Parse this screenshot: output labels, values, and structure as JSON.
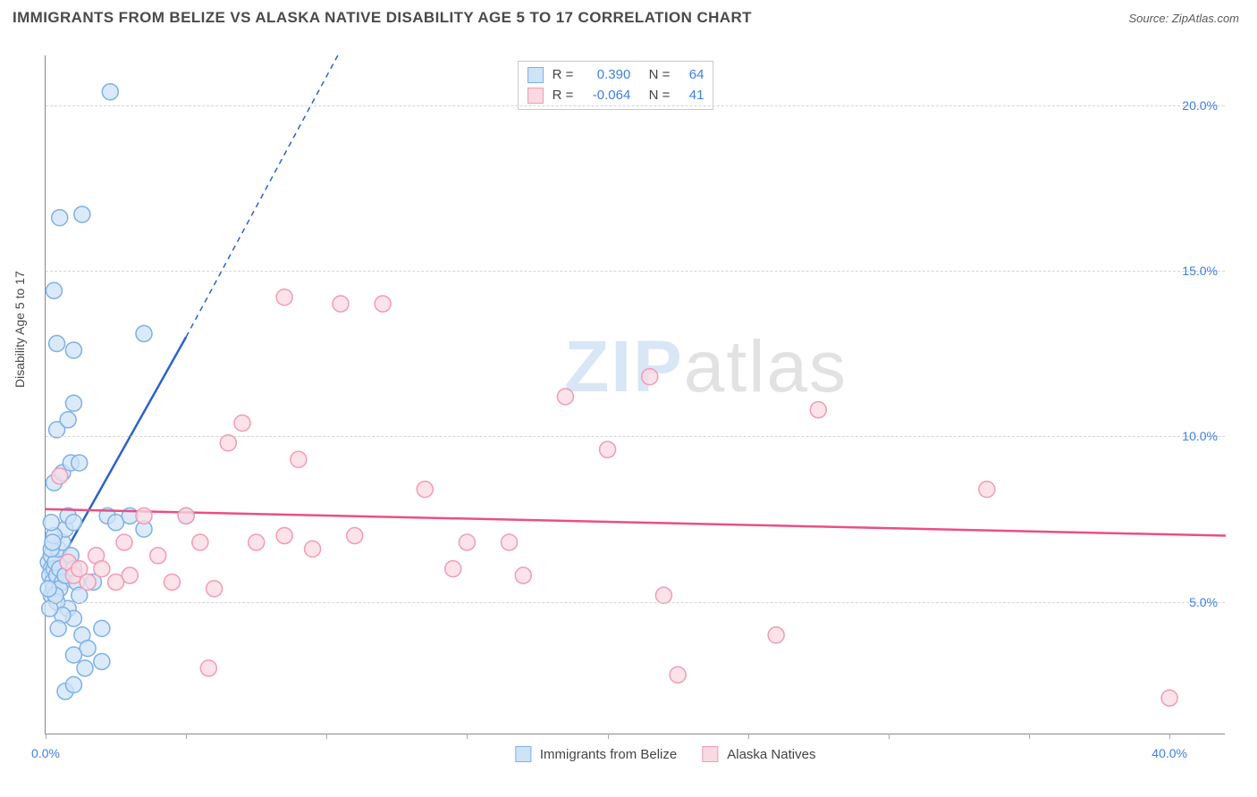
{
  "title": "IMMIGRANTS FROM BELIZE VS ALASKA NATIVE DISABILITY AGE 5 TO 17 CORRELATION CHART",
  "source": "Source: ZipAtlas.com",
  "y_axis_label": "Disability Age 5 to 17",
  "watermark_a": "ZIP",
  "watermark_b": "atlas",
  "chart": {
    "type": "scatter",
    "xlim": [
      0,
      42
    ],
    "ylim": [
      1,
      21.5
    ],
    "x_ticks": [
      0,
      5,
      10,
      15,
      20,
      25,
      30,
      35,
      40
    ],
    "x_tick_labels": {
      "0": "0.0%",
      "40": "40.0%"
    },
    "y_ticks": [
      5,
      10,
      15,
      20
    ],
    "y_tick_labels": [
      "5.0%",
      "10.0%",
      "15.0%",
      "20.0%"
    ],
    "grid_color": "#d5d5d5",
    "axis_color": "#888888",
    "background": "#ffffff",
    "series": [
      {
        "name": "Immigrants from Belize",
        "color_fill": "#cfe3f7",
        "color_stroke": "#7fb0e6",
        "line_color": "#2e62c9",
        "marker_radius": 9,
        "r_value": "0.390",
        "n_value": "64",
        "trend": {
          "x1": 0.1,
          "y1": 5.6,
          "x2_solid": 5.0,
          "y2_solid": 13.0,
          "x2_dash": 10.4,
          "y2_dash": 21.5
        },
        "points": [
          [
            0.1,
            6.2
          ],
          [
            0.2,
            6.0
          ],
          [
            0.15,
            5.8
          ],
          [
            0.2,
            6.4
          ],
          [
            0.3,
            6.0
          ],
          [
            0.25,
            5.6
          ],
          [
            0.2,
            5.2
          ],
          [
            0.3,
            5.4
          ],
          [
            0.4,
            5.8
          ],
          [
            0.35,
            6.2
          ],
          [
            0.45,
            6.6
          ],
          [
            0.5,
            6.0
          ],
          [
            0.6,
            5.6
          ],
          [
            0.5,
            5.4
          ],
          [
            0.7,
            5.8
          ],
          [
            0.8,
            6.2
          ],
          [
            0.6,
            6.8
          ],
          [
            0.9,
            6.4
          ],
          [
            1.0,
            6.0
          ],
          [
            1.1,
            5.6
          ],
          [
            1.2,
            5.2
          ],
          [
            0.8,
            4.8
          ],
          [
            1.0,
            4.5
          ],
          [
            1.3,
            4.0
          ],
          [
            1.5,
            3.6
          ],
          [
            1.0,
            3.4
          ],
          [
            1.7,
            5.6
          ],
          [
            2.0,
            4.2
          ],
          [
            2.2,
            7.6
          ],
          [
            2.5,
            7.4
          ],
          [
            3.0,
            7.6
          ],
          [
            3.5,
            7.2
          ],
          [
            5.0,
            7.6
          ],
          [
            0.7,
            7.2
          ],
          [
            0.8,
            7.6
          ],
          [
            1.0,
            7.4
          ],
          [
            0.3,
            8.6
          ],
          [
            0.6,
            8.9
          ],
          [
            0.9,
            9.2
          ],
          [
            1.2,
            9.2
          ],
          [
            0.4,
            10.2
          ],
          [
            0.8,
            10.5
          ],
          [
            1.0,
            11.0
          ],
          [
            0.4,
            12.8
          ],
          [
            1.0,
            12.6
          ],
          [
            3.5,
            13.1
          ],
          [
            0.3,
            14.4
          ],
          [
            0.5,
            16.6
          ],
          [
            1.3,
            16.7
          ],
          [
            2.3,
            20.4
          ],
          [
            0.7,
            2.3
          ],
          [
            1.0,
            2.5
          ],
          [
            1.4,
            3.0
          ],
          [
            2.0,
            3.2
          ],
          [
            0.2,
            6.6
          ],
          [
            0.3,
            7.0
          ],
          [
            0.4,
            5.0
          ],
          [
            0.6,
            4.6
          ],
          [
            0.15,
            4.8
          ],
          [
            0.25,
            6.8
          ],
          [
            0.35,
            5.2
          ],
          [
            0.1,
            5.4
          ],
          [
            0.45,
            4.2
          ],
          [
            0.2,
            7.4
          ]
        ]
      },
      {
        "name": "Alaska Natives",
        "color_fill": "#f9d9e2",
        "color_stroke": "#ef9cb6",
        "line_color": "#ea4f85",
        "marker_radius": 9,
        "r_value": "-0.064",
        "n_value": "41",
        "trend": {
          "x1": 0,
          "y1": 7.8,
          "x2_solid": 42,
          "y2_solid": 7.0
        },
        "points": [
          [
            0.5,
            8.8
          ],
          [
            0.8,
            6.2
          ],
          [
            1.0,
            5.8
          ],
          [
            1.2,
            6.0
          ],
          [
            1.5,
            5.6
          ],
          [
            1.8,
            6.4
          ],
          [
            2.0,
            6.0
          ],
          [
            2.5,
            5.6
          ],
          [
            2.8,
            6.8
          ],
          [
            3.0,
            5.8
          ],
          [
            3.5,
            7.6
          ],
          [
            4.0,
            6.4
          ],
          [
            4.5,
            5.6
          ],
          [
            5.0,
            7.6
          ],
          [
            5.5,
            6.8
          ],
          [
            6.0,
            5.4
          ],
          [
            6.5,
            9.8
          ],
          [
            7.0,
            10.4
          ],
          [
            7.5,
            6.8
          ],
          [
            8.5,
            14.2
          ],
          [
            9.0,
            9.3
          ],
          [
            9.5,
            6.6
          ],
          [
            10.5,
            14.0
          ],
          [
            11.0,
            7.0
          ],
          [
            12.0,
            14.0
          ],
          [
            13.5,
            8.4
          ],
          [
            14.5,
            6.0
          ],
          [
            15.0,
            6.8
          ],
          [
            16.5,
            6.8
          ],
          [
            17.0,
            5.8
          ],
          [
            18.5,
            11.2
          ],
          [
            20.0,
            9.6
          ],
          [
            21.5,
            11.8
          ],
          [
            22.0,
            5.2
          ],
          [
            22.5,
            2.8
          ],
          [
            26.0,
            4.0
          ],
          [
            27.5,
            10.8
          ],
          [
            33.5,
            8.4
          ],
          [
            40.0,
            2.1
          ],
          [
            5.8,
            3.0
          ],
          [
            8.5,
            7.0
          ]
        ]
      }
    ]
  },
  "legend_top": {
    "r_label": "R =",
    "n_label": "N ="
  },
  "legend_bottom": [
    "Immigrants from Belize",
    "Alaska Natives"
  ],
  "watermark_colors": {
    "zip": "#d9e6f5",
    "atlas": "#e2e2e2"
  }
}
